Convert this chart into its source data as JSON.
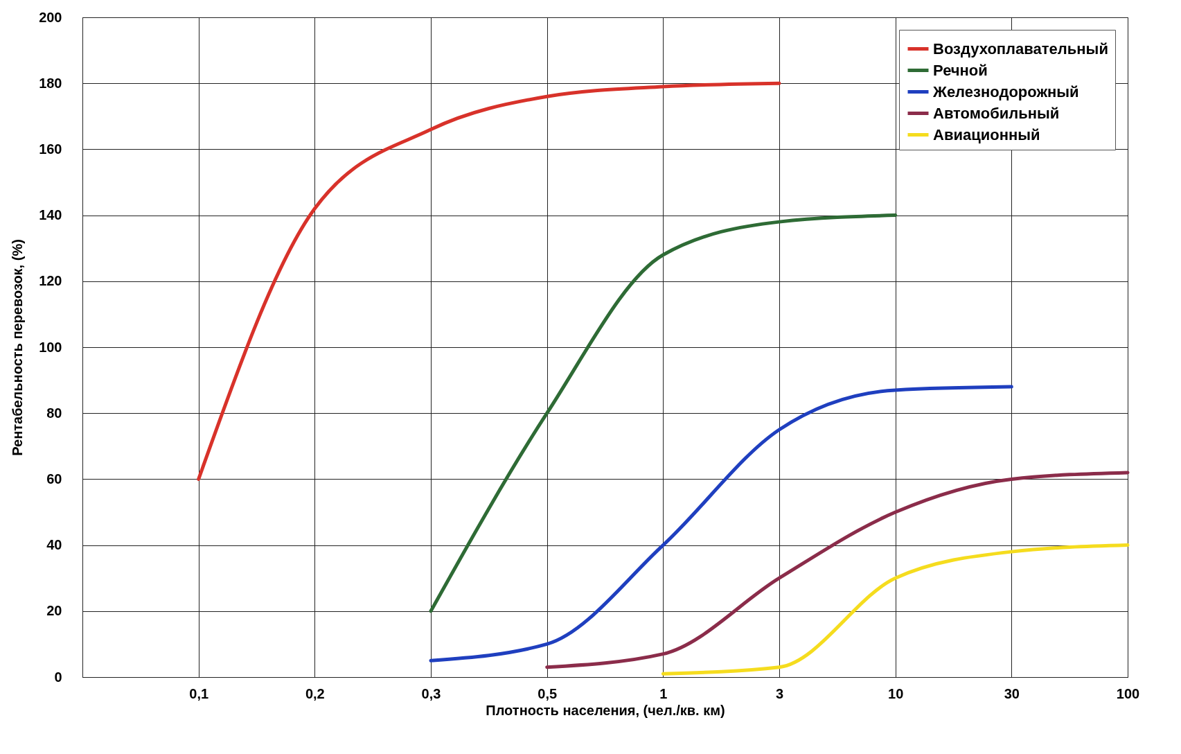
{
  "chart_data": {
    "type": "line",
    "xlabel": "Плотность населения, (чел./кв. км)",
    "ylabel": "Рентабельность перевозок, (%)",
    "categories": [
      null,
      "0,1",
      "0,2",
      "0,3",
      "0,5",
      "1",
      "3",
      "10",
      "30",
      "100"
    ],
    "ylim": [
      0,
      200
    ],
    "yticks": [
      0,
      20,
      40,
      60,
      80,
      100,
      120,
      140,
      160,
      180,
      200
    ],
    "grid": true,
    "legend": "top right",
    "line_style": "solid",
    "marker": "none",
    "series": [
      {
        "name": "Воздухоплавательный",
        "color": "#d8322a",
        "values": [
          null,
          60,
          142,
          166,
          176,
          179,
          180,
          null,
          null,
          null
        ]
      },
      {
        "name": "Речной",
        "color": "#2e6b35",
        "values": [
          null,
          null,
          null,
          20,
          80,
          128,
          138,
          140,
          null,
          null
        ]
      },
      {
        "name": "Железнодорожный",
        "color": "#1f3fbf",
        "values": [
          null,
          null,
          null,
          5,
          10,
          40,
          75,
          87,
          88,
          null
        ]
      },
      {
        "name": "Автомобильный",
        "color": "#8b2c4a",
        "values": [
          null,
          null,
          null,
          null,
          3,
          7,
          30,
          50,
          60,
          62
        ]
      },
      {
        "name": "Авиационный",
        "color": "#f5dc1e",
        "values": [
          null,
          null,
          null,
          null,
          null,
          1,
          3,
          30,
          38,
          40
        ]
      }
    ]
  }
}
